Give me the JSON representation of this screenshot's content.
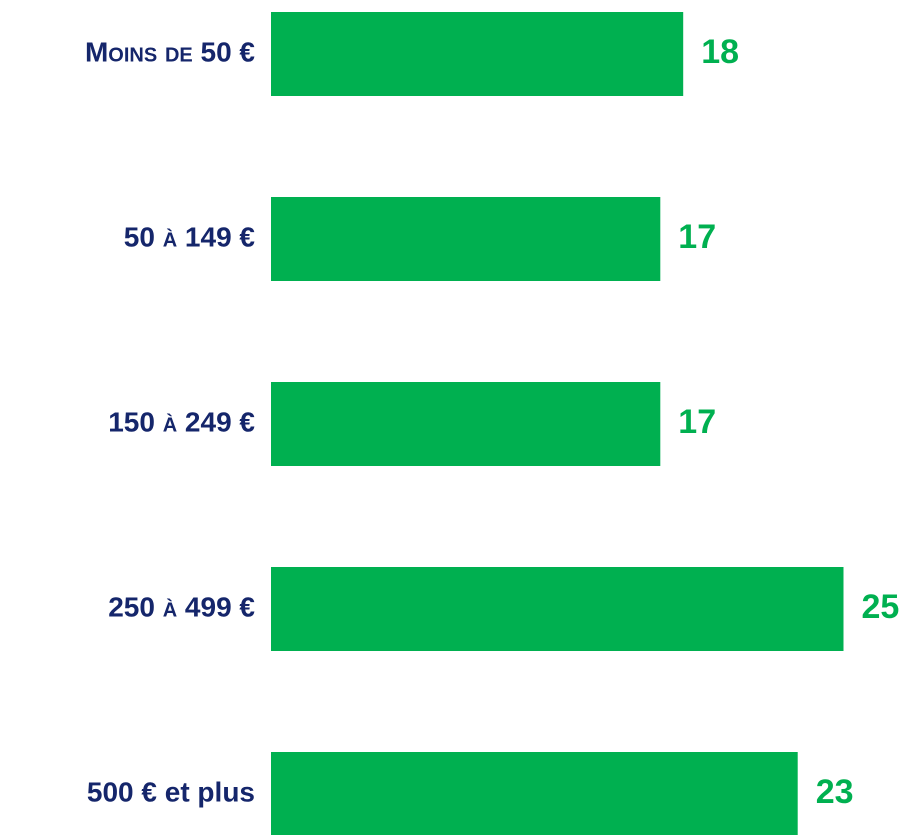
{
  "chart_data": {
    "type": "bar",
    "orientation": "horizontal",
    "categories": [
      "Moins de 50 €",
      "50 à 149 €",
      "150 à 249 €",
      "250 à 499 €",
      "500 € et plus"
    ],
    "values": [
      18,
      17,
      17,
      25,
      23
    ],
    "color": "#00b050"
  }
}
